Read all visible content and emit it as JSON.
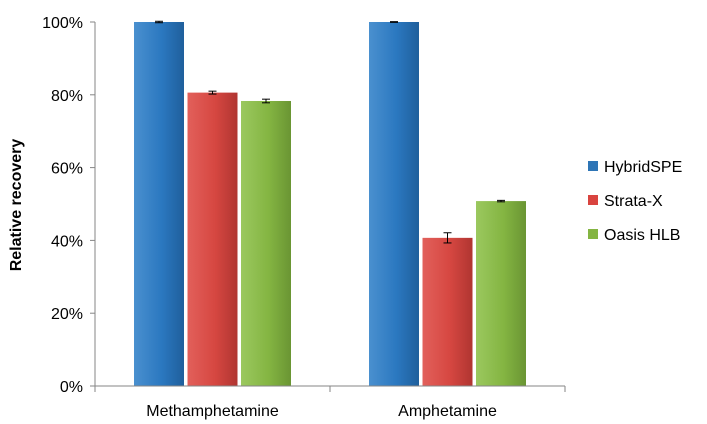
{
  "chart_data": {
    "type": "bar",
    "categories": [
      "Methamphetamine",
      "Amphetamine"
    ],
    "series": [
      {
        "name": "HybridSPE",
        "values": [
          100,
          100
        ],
        "errors": [
          0.2,
          0.1
        ],
        "color": "#2e75b6"
      },
      {
        "name": "Strata-X",
        "values": [
          80.6,
          40.7
        ],
        "errors": [
          0.4,
          1.4
        ],
        "color": "#d9443f"
      },
      {
        "name": "Oasis HLB",
        "values": [
          78.3,
          50.8
        ],
        "errors": [
          0.5,
          0.2
        ],
        "color": "#84b542"
      }
    ],
    "ylabel": "Relative recovery",
    "ylim": [
      0,
      100
    ],
    "yticks": [
      "0%",
      "20%",
      "40%",
      "60%",
      "80%",
      "100%"
    ],
    "ytick_values": [
      0,
      20,
      40,
      60,
      80,
      100
    ],
    "grid": false,
    "legend_position": "right"
  }
}
